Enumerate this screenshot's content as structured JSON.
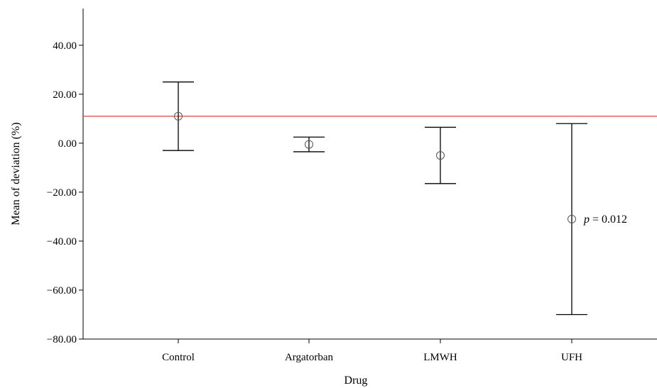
{
  "chart_data": {
    "type": "errorbar",
    "xlabel": "Drug",
    "ylabel": "Mean of deviation (%)",
    "ylim": [
      -80,
      55
    ],
    "yticks": [
      "40.00",
      "20.00",
      "0.00",
      "−20.00",
      "−40.00",
      "−60.00",
      "−80.00"
    ],
    "ytick_values": [
      40,
      20,
      0,
      -20,
      -40,
      -60,
      -80
    ],
    "categories": [
      "Control",
      "Argatorban",
      "LMWH",
      "UFH"
    ],
    "mean": [
      11,
      -0.5,
      -5,
      -31
    ],
    "lower": [
      -3,
      -3.5,
      -16.5,
      -70
    ],
    "upper": [
      25,
      2.5,
      6.5,
      8
    ],
    "reference_line": {
      "y": 11,
      "color": "#e04040"
    },
    "annotation": {
      "category": "UFH",
      "italic": "p",
      "text": " = 0.012"
    },
    "grid": false
  }
}
